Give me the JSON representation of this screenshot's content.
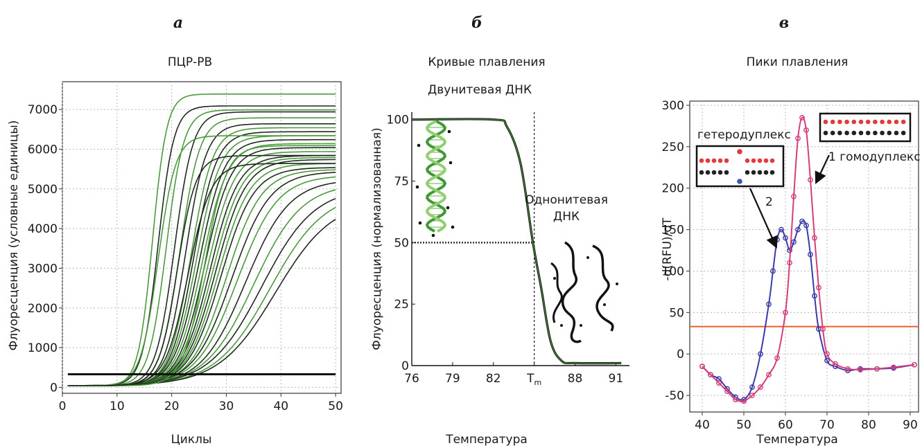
{
  "chart_data": [
    {
      "type": "line",
      "panel_letter": "а",
      "title": "ПЦР-РВ",
      "xlabel": "Циклы",
      "ylabel": "Флуоресценция (условные единицы)",
      "xlim": [
        0,
        51
      ],
      "ylim": [
        -150,
        7700
      ],
      "x_ticks": [
        0,
        10,
        20,
        30,
        40,
        50
      ],
      "y_ticks": [
        0,
        1000,
        2000,
        3000,
        4000,
        5000,
        6000,
        7000
      ],
      "grid": true,
      "threshold": 330,
      "colors": [
        "#4a9a3c",
        "#1e2a1e"
      ],
      "curve_params": [
        {
          "top": 7350,
          "mid": 16.5,
          "slope": 1.3
        },
        {
          "top": 7050,
          "mid": 17.5,
          "slope": 1.45
        },
        {
          "top": 6950,
          "mid": 19.0,
          "slope": 1.6
        },
        {
          "top": 6900,
          "mid": 20.5,
          "slope": 1.7
        },
        {
          "top": 6750,
          "mid": 21.5,
          "slope": 1.8
        },
        {
          "top": 6600,
          "mid": 22.5,
          "slope": 1.9
        },
        {
          "top": 6500,
          "mid": 23.5,
          "slope": 2.0
        },
        {
          "top": 6400,
          "mid": 24.0,
          "slope": 2.1
        },
        {
          "top": 6300,
          "mid": 24.5,
          "slope": 2.2
        },
        {
          "top": 6200,
          "mid": 25.0,
          "slope": 2.3
        },
        {
          "top": 6100,
          "mid": 25.5,
          "slope": 2.35
        },
        {
          "top": 6000,
          "mid": 26.0,
          "slope": 2.4
        },
        {
          "top": 5900,
          "mid": 26.5,
          "slope": 2.5
        },
        {
          "top": 5800,
          "mid": 27.0,
          "slope": 2.6
        },
        {
          "top": 5750,
          "mid": 27.5,
          "slope": 2.7
        },
        {
          "top": 5700,
          "mid": 28.0,
          "slope": 2.8
        },
        {
          "top": 5600,
          "mid": 28.5,
          "slope": 2.9
        },
        {
          "top": 5500,
          "mid": 29.0,
          "slope": 3.0
        },
        {
          "top": 5450,
          "mid": 30.0,
          "slope": 3.2
        },
        {
          "top": 5400,
          "mid": 31.0,
          "slope": 3.5
        },
        {
          "top": 5300,
          "mid": 32.0,
          "slope": 3.7
        },
        {
          "top": 5200,
          "mid": 33.5,
          "slope": 4.0
        },
        {
          "top": 5100,
          "mid": 35.0,
          "slope": 4.4
        },
        {
          "top": 5000,
          "mid": 36.5,
          "slope": 4.8
        },
        {
          "top": 4900,
          "mid": 38.0,
          "slope": 5.0
        },
        {
          "top": 4700,
          "mid": 39.0,
          "slope": 5.2
        },
        {
          "top": 6300,
          "mid": 17.5,
          "slope": 1.6
        },
        {
          "top": 5800,
          "mid": 21.0,
          "slope": 1.7
        },
        {
          "top": 6050,
          "mid": 26.0,
          "slope": 2.0
        },
        {
          "top": 5600,
          "mid": 23.0,
          "slope": 2.1
        }
      ]
    },
    {
      "type": "line",
      "panel_letter": "б",
      "title": "Кривые плавления",
      "xlabel": "Температура",
      "ylabel": "Флуоресценция (нормализованная)",
      "xlim": [
        76,
        92
      ],
      "ylim": [
        0,
        103
      ],
      "x_ticks": [
        {
          "value": 76,
          "label": "76"
        },
        {
          "value": 79,
          "label": "79"
        },
        {
          "value": 82,
          "label": "82"
        },
        {
          "value": 85,
          "label": "T",
          "sub": "m"
        },
        {
          "value": 88,
          "label": "88"
        },
        {
          "value": 91,
          "label": "91"
        }
      ],
      "y_ticks": [
        0,
        25,
        50,
        75,
        100
      ],
      "grid": false,
      "tm": 85,
      "melt_midpoint": 84.9,
      "series": [
        {
          "x": [
            76.0,
            82.0,
            83.0,
            84.0,
            84.9,
            85.5,
            86.2,
            87.0,
            88.0,
            91.4
          ],
          "y": [
            100,
            100,
            97,
            82,
            50,
            32,
            10,
            2,
            1,
            1
          ]
        }
      ],
      "annotations": {
        "double": "Двунитевая ДНК",
        "single_line1": "Однонитевая",
        "single_line2": "ДНК"
      }
    },
    {
      "type": "line",
      "panel_letter": "в",
      "title": "Пики плавления",
      "xlabel": "Температура",
      "ylabel": "-d(RFU)/dT",
      "xlim": [
        37,
        92
      ],
      "ylim": [
        -70,
        305
      ],
      "x_ticks": [
        40,
        50,
        60,
        70,
        80,
        90
      ],
      "y_ticks": [
        -50,
        0,
        50,
        100,
        150,
        200,
        250,
        300
      ],
      "grid": true,
      "threshold": 33,
      "series": [
        {
          "name": "гетеродуплекс",
          "color": "#3a3aa8",
          "x": [
            40,
            42,
            44,
            46,
            48,
            50,
            52,
            54,
            56,
            57,
            58,
            59,
            60,
            61,
            62,
            63,
            64,
            65,
            66,
            67,
            68,
            70,
            72,
            75,
            78,
            82,
            86,
            91
          ],
          "y": [
            -15,
            -25,
            -30,
            -42,
            -52,
            -55,
            -40,
            0,
            60,
            100,
            138,
            150,
            140,
            125,
            135,
            150,
            160,
            155,
            120,
            70,
            30,
            -8,
            -15,
            -20,
            -18,
            -18,
            -17,
            -13
          ]
        },
        {
          "name": "гомодуплекс",
          "color": "#d33d7a",
          "x": [
            40,
            42,
            44,
            46,
            48,
            50,
            52,
            54,
            56,
            58,
            60,
            61,
            62,
            63,
            64,
            65,
            66,
            67,
            68,
            69,
            70,
            72,
            75,
            78,
            82,
            86,
            91
          ],
          "y": [
            -15,
            -25,
            -35,
            -45,
            -55,
            -57,
            -50,
            -40,
            -25,
            -5,
            50,
            110,
            190,
            260,
            285,
            270,
            210,
            140,
            80,
            30,
            0,
            -12,
            -18,
            -19,
            -18,
            -16,
            -13
          ]
        }
      ],
      "annotations": {
        "hetero": "гетеродуплекс",
        "homo": "1 гомодуплекс",
        "num2": "2"
      }
    }
  ]
}
